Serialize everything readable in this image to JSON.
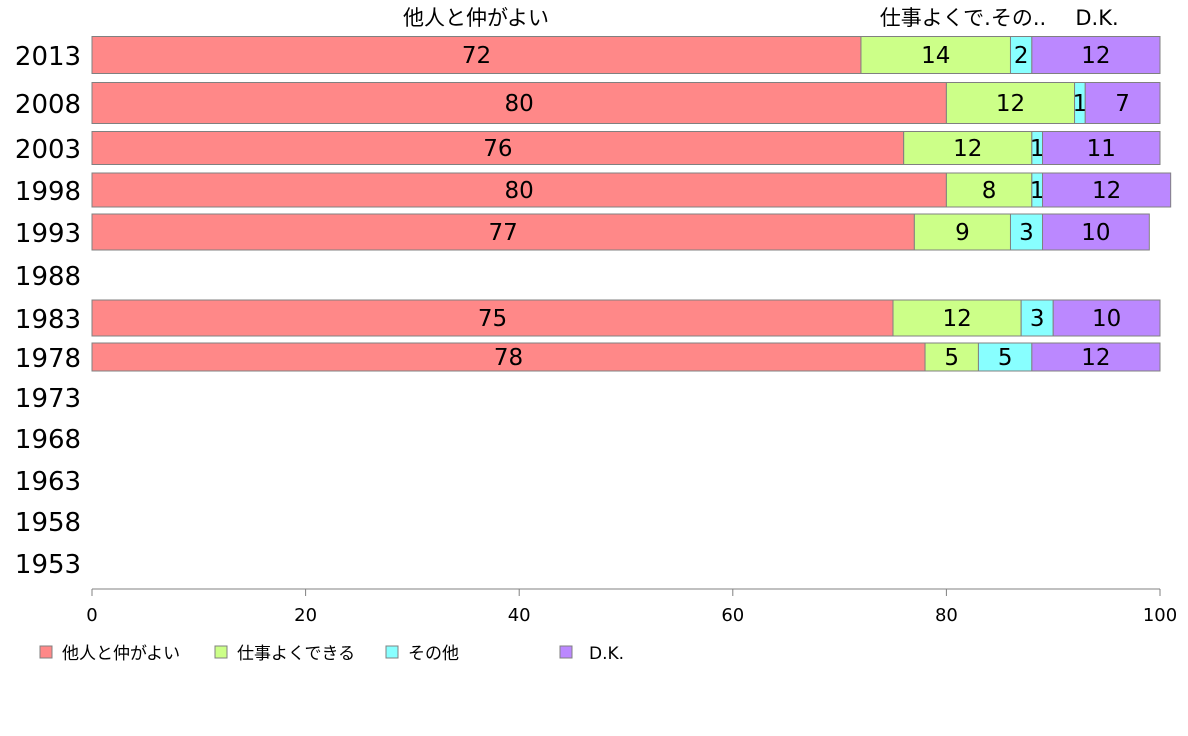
{
  "chart_data": {
    "type": "bar",
    "orientation": "horizontal",
    "stacked": true,
    "categories": [
      "2013",
      "2008",
      "2003",
      "1998",
      "1993",
      "1988",
      "1983",
      "1978",
      "1973",
      "1968",
      "1963",
      "1958",
      "1953"
    ],
    "series": [
      {
        "name": "他人と仲がよい",
        "color": "#FF8888",
        "values": [
          72,
          80,
          76,
          80,
          77,
          null,
          75,
          78,
          null,
          null,
          null,
          null,
          null
        ]
      },
      {
        "name": "仕事よくできる",
        "color": "#CCFF88",
        "values": [
          14,
          12,
          12,
          8,
          9,
          null,
          12,
          5,
          null,
          null,
          null,
          null,
          null
        ]
      },
      {
        "name": "その他",
        "color": "#88FFFF",
        "values": [
          2,
          1,
          1,
          1,
          3,
          null,
          3,
          5,
          null,
          null,
          null,
          null,
          null
        ]
      },
      {
        "name": "D.K.",
        "color": "#BB88FF",
        "values": [
          12,
          7,
          11,
          12,
          10,
          null,
          10,
          12,
          null,
          null,
          null,
          null,
          null
        ]
      }
    ],
    "top_labels": [
      "他人と仲がよい",
      "仕事よくで.その..",
      "D.K."
    ],
    "xlim": [
      0,
      100
    ],
    "xticks": [
      0,
      20,
      40,
      60,
      80,
      100
    ],
    "grid": false,
    "legend_position": "bottom"
  }
}
